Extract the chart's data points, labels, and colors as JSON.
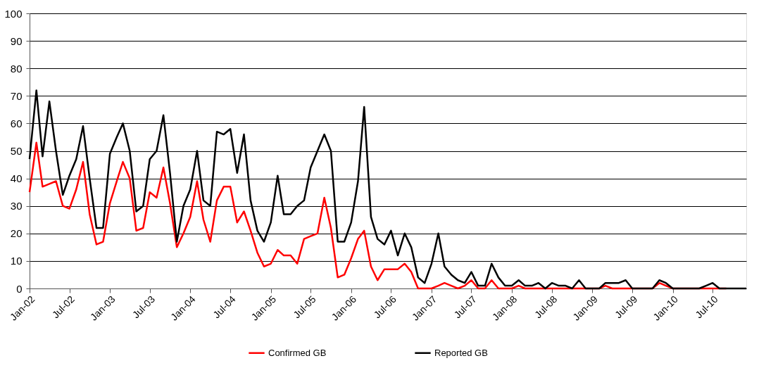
{
  "chart_data": {
    "type": "line",
    "x": [
      "2002-01",
      "2002-02",
      "2002-03",
      "2002-04",
      "2002-05",
      "2002-06",
      "2002-07",
      "2002-08",
      "2002-09",
      "2002-10",
      "2002-11",
      "2002-12",
      "2003-01",
      "2003-02",
      "2003-03",
      "2003-04",
      "2003-05",
      "2003-06",
      "2003-07",
      "2003-08",
      "2003-09",
      "2003-10",
      "2003-11",
      "2003-12",
      "2004-01",
      "2004-02",
      "2004-03",
      "2004-04",
      "2004-05",
      "2004-06",
      "2004-07",
      "2004-08",
      "2004-09",
      "2004-10",
      "2004-11",
      "2004-12",
      "2005-01",
      "2005-02",
      "2005-03",
      "2005-04",
      "2005-05",
      "2005-06",
      "2005-07",
      "2005-08",
      "2005-09",
      "2005-10",
      "2005-11",
      "2005-12",
      "2006-01",
      "2006-02",
      "2006-03",
      "2006-04",
      "2006-05",
      "2006-06",
      "2006-07",
      "2006-08",
      "2006-09",
      "2006-10",
      "2006-11",
      "2006-12",
      "2007-01",
      "2007-02",
      "2007-03",
      "2007-04",
      "2007-05",
      "2007-06",
      "2007-07",
      "2007-08",
      "2007-09",
      "2007-10",
      "2007-11",
      "2007-12",
      "2008-01",
      "2008-02",
      "2008-03",
      "2008-04",
      "2008-05",
      "2008-06",
      "2008-07",
      "2008-08",
      "2008-09",
      "2008-10",
      "2008-11",
      "2008-12",
      "2009-01",
      "2009-02",
      "2009-03",
      "2009-04",
      "2009-05",
      "2009-06",
      "2009-07",
      "2009-08",
      "2009-09",
      "2009-10",
      "2009-11",
      "2009-12",
      "2010-01",
      "2010-02",
      "2010-03",
      "2010-04",
      "2010-05",
      "2010-06",
      "2010-07",
      "2010-08",
      "2010-09",
      "2010-10",
      "2010-11",
      "2010-12"
    ],
    "series": [
      {
        "name": "Confirmed GB",
        "color": "#ff0000",
        "values": [
          35,
          53,
          37,
          38,
          39,
          30,
          29,
          36,
          46,
          27,
          16,
          17,
          31,
          39,
          46,
          40,
          21,
          22,
          35,
          33,
          44,
          31,
          15,
          20,
          26,
          39,
          25,
          17,
          32,
          37,
          37,
          24,
          28,
          21,
          13,
          8,
          9,
          14,
          12,
          12,
          9,
          18,
          19,
          20,
          33,
          22,
          4,
          5,
          11,
          18,
          21,
          8,
          3,
          7,
          7,
          7,
          9,
          6,
          0,
          0,
          0,
          1,
          2,
          1,
          0,
          1,
          3,
          0,
          0,
          3,
          0,
          0,
          0,
          1,
          0,
          0,
          0,
          0,
          0,
          0,
          0,
          0,
          0,
          0,
          0,
          0,
          1,
          0,
          0,
          0,
          0,
          0,
          0,
          0,
          2,
          1,
          0,
          0,
          0,
          0,
          0,
          0,
          0,
          0,
          0,
          null,
          null,
          null
        ]
      },
      {
        "name": "Reported GB",
        "color": "#000000",
        "values": [
          47,
          72,
          48,
          68,
          50,
          34,
          41,
          47,
          59,
          40,
          22,
          22,
          49,
          55,
          60,
          50,
          28,
          30,
          47,
          50,
          63,
          42,
          17,
          30,
          36,
          50,
          32,
          30,
          57,
          56,
          58,
          42,
          56,
          32,
          21,
          17,
          24,
          41,
          27,
          27,
          30,
          32,
          44,
          50,
          56,
          50,
          17,
          17,
          24,
          39,
          66,
          26,
          18,
          16,
          21,
          12,
          20,
          15,
          4,
          2,
          9,
          20,
          8,
          5,
          3,
          2,
          6,
          1,
          1,
          9,
          4,
          1,
          1,
          3,
          1,
          1,
          2,
          0,
          2,
          1,
          1,
          0,
          3,
          0,
          0,
          0,
          2,
          2,
          2,
          3,
          0,
          0,
          0,
          0,
          3,
          2,
          0,
          0,
          0,
          0,
          0,
          1,
          2,
          0,
          0,
          0,
          0,
          0
        ]
      }
    ],
    "xlim": [
      "2002-01",
      "2010-12"
    ],
    "xticks": [
      {
        "value": "2002-01",
        "label": "Jan-02"
      },
      {
        "value": "2002-07",
        "label": "Jul-02"
      },
      {
        "value": "2003-01",
        "label": "Jan-03"
      },
      {
        "value": "2003-07",
        "label": "Jul-03"
      },
      {
        "value": "2004-01",
        "label": "Jan-04"
      },
      {
        "value": "2004-07",
        "label": "Jul-04"
      },
      {
        "value": "2005-01",
        "label": "Jan-05"
      },
      {
        "value": "2005-07",
        "label": "Jul-05"
      },
      {
        "value": "2006-01",
        "label": "Jan-06"
      },
      {
        "value": "2006-07",
        "label": "Jul-06"
      },
      {
        "value": "2007-01",
        "label": "Jan-07"
      },
      {
        "value": "2007-07",
        "label": "Jul-07"
      },
      {
        "value": "2008-01",
        "label": "Jan-08"
      },
      {
        "value": "2008-07",
        "label": "Jul-08"
      },
      {
        "value": "2009-01",
        "label": "Jan-09"
      },
      {
        "value": "2009-07",
        "label": "Jul-09"
      },
      {
        "value": "2010-01",
        "label": "Jan-10"
      },
      {
        "value": "2010-07",
        "label": "Jul-10"
      }
    ],
    "ylim": [
      0,
      100
    ],
    "yticks": [
      0,
      10,
      20,
      30,
      40,
      50,
      60,
      70,
      80,
      90,
      100
    ],
    "grid": "y",
    "legend": "bottom",
    "marker": "none",
    "line_style": "solid"
  }
}
